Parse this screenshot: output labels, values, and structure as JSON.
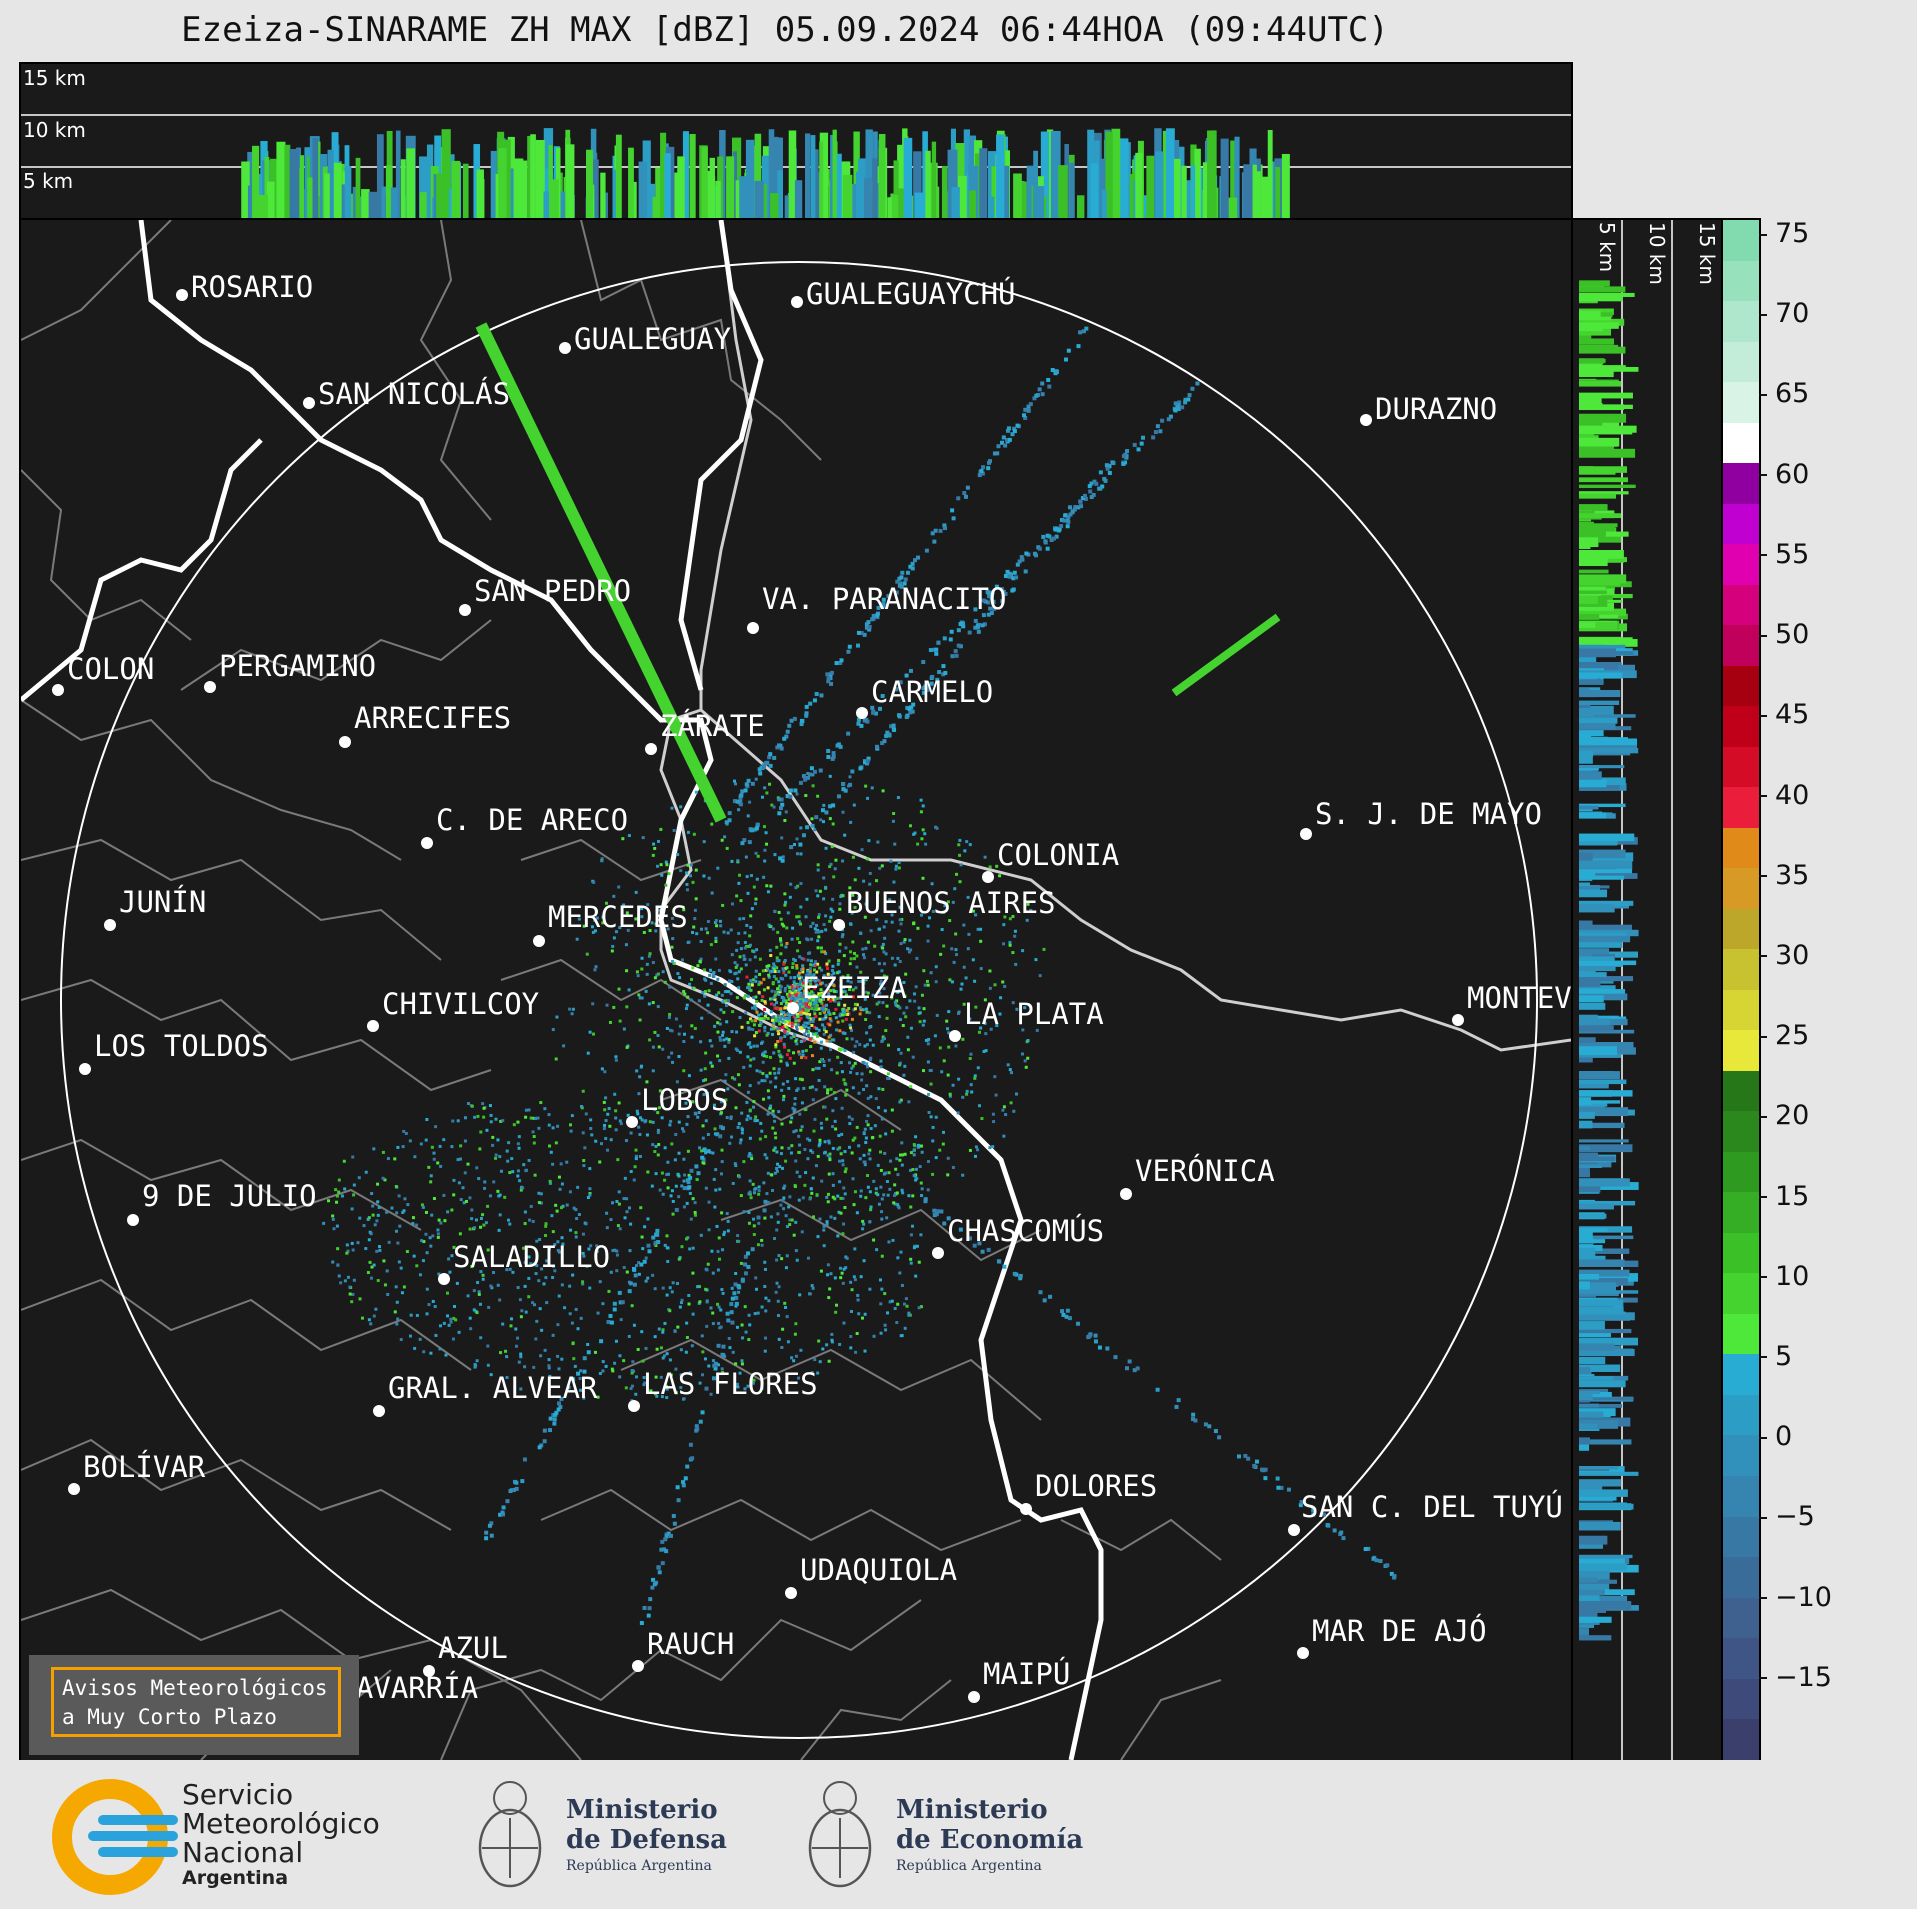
{
  "title": "Ezeiza-SINARAME ZH MAX [dBZ] 05.09.2024 06:44HOA (09:44UTC)",
  "top_panel": {
    "altitude_labels": [
      "15 km",
      "10 km",
      "5 km"
    ]
  },
  "side_panel": {
    "altitude_labels": [
      "5 km",
      "10 km",
      "15 km"
    ]
  },
  "colorbar": {
    "unit": "dBZ",
    "ticks": [
      "75",
      "70",
      "65",
      "60",
      "55",
      "50",
      "45",
      "40",
      "35",
      "30",
      "25",
      "20",
      "15",
      "10",
      "5",
      "0",
      "−5",
      "−10",
      "−15"
    ],
    "min": -20,
    "max": 76,
    "colors": [
      "#3a3f6b",
      "#3d4a7a",
      "#3f5585",
      "#3e6190",
      "#3a6c99",
      "#3878a4",
      "#3585b0",
      "#3191bb",
      "#2c9ec6",
      "#29acd4",
      "#4ee83a",
      "#45d42f",
      "#3cc028",
      "#35ad24",
      "#2f9a20",
      "#2a881d",
      "#267718",
      "#e8e83a",
      "#d7d533",
      "#c8c230",
      "#bca72a",
      "#d69a25",
      "#e08a1a",
      "#ea1e3a",
      "#d40c25",
      "#c00018",
      "#a60010",
      "#c0005a",
      "#d4007c",
      "#e000b0",
      "#c000d0",
      "#9000a0",
      "#ffffff",
      "#daf3e7",
      "#c4edd9",
      "#aee7cb",
      "#98e1bd",
      "#82dbaf"
    ]
  },
  "cities": [
    {
      "name": "ROSARIO"
    },
    {
      "name": "GUALEGUAYCHÚ"
    },
    {
      "name": "GUALEGUAY"
    },
    {
      "name": "SAN NICOLÁS"
    },
    {
      "name": "DURAZNO"
    },
    {
      "name": "SAN PEDRO"
    },
    {
      "name": "VA. PARANACITO"
    },
    {
      "name": "COLON"
    },
    {
      "name": "PERGAMINO"
    },
    {
      "name": "CARMELO"
    },
    {
      "name": "ARRECIFES"
    },
    {
      "name": "ZÁRATE"
    },
    {
      "name": "S. J. DE MAYO"
    },
    {
      "name": "C. DE ARECO"
    },
    {
      "name": "COLONIA"
    },
    {
      "name": "JUNÍN"
    },
    {
      "name": "BUENOS AIRES"
    },
    {
      "name": "MERCEDES"
    },
    {
      "name": "EZEIZA"
    },
    {
      "name": "MONTEV"
    },
    {
      "name": "CHIVILCOY"
    },
    {
      "name": "LA PLATA"
    },
    {
      "name": "LOS TOLDOS"
    },
    {
      "name": "LOBOS"
    },
    {
      "name": "VERÓNICA"
    },
    {
      "name": "9 DE JULIO"
    },
    {
      "name": "CHASCOMÚS"
    },
    {
      "name": "SALADILLO"
    },
    {
      "name": "GRAL. ALVEAR"
    },
    {
      "name": "LAS FLORES"
    },
    {
      "name": "BOLÍVAR"
    },
    {
      "name": "DOLORES"
    },
    {
      "name": "SAN C. DEL TUYÚ"
    },
    {
      "name": "UDAQUIOLA"
    },
    {
      "name": "MAR DE AJÓ"
    },
    {
      "name": "AZUL"
    },
    {
      "name": "RAUCH"
    },
    {
      "name": "MAIPÚ"
    },
    {
      "name": "OLAVARRÍA"
    }
  ],
  "avisos": {
    "line1": "Avisos Meteorológicos",
    "line2": "a Muy Corto Plazo"
  },
  "footer": {
    "smn": {
      "line1": "Servicio",
      "line2": "Meteorológico",
      "line3": "Nacional",
      "line4": "Argentina"
    },
    "defensa": {
      "line1": "Ministerio",
      "line2": "de Defensa",
      "line3": "República Argentina"
    },
    "economia": {
      "line1": "Ministerio",
      "line2": "de Economía",
      "line3": "República Argentina"
    }
  }
}
